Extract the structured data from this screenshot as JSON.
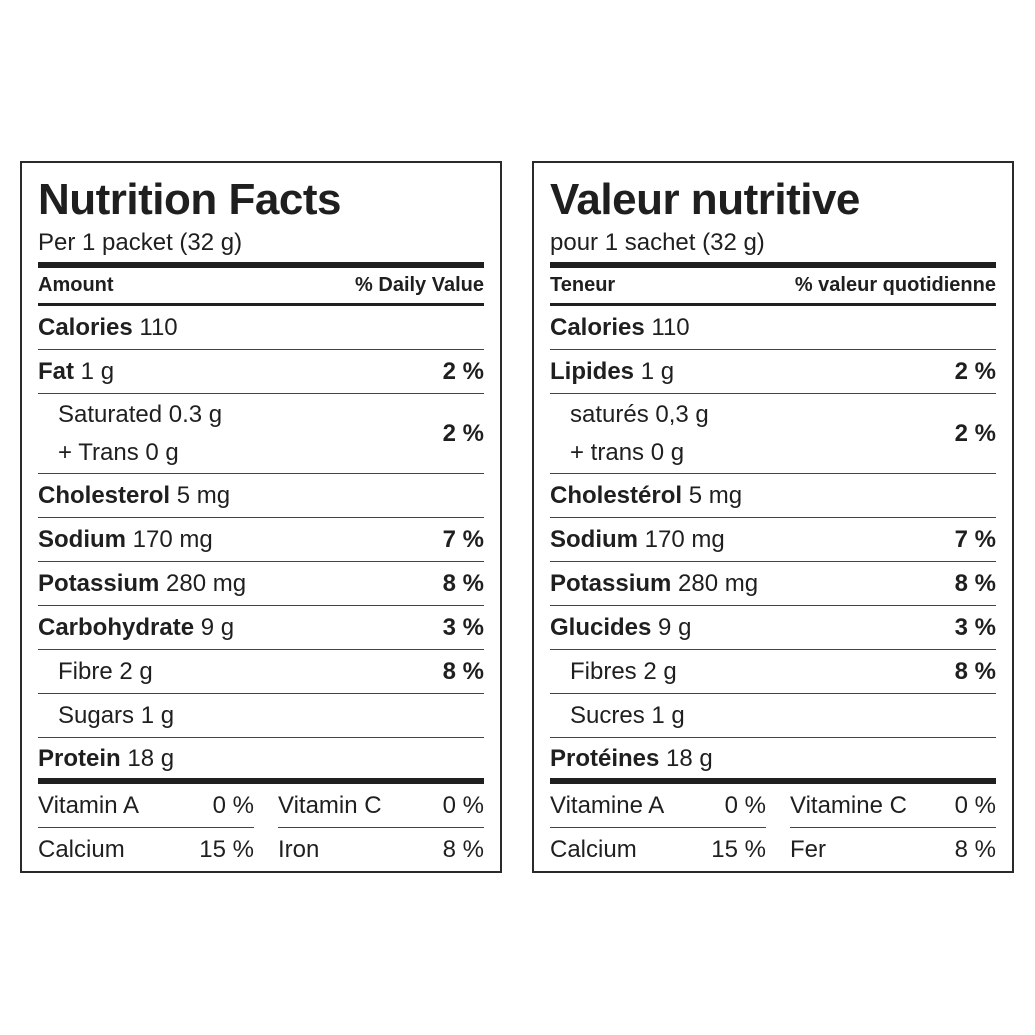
{
  "english": {
    "title": "Nutrition Facts",
    "serving": "Per 1 packet (32 g)",
    "header_left": "Amount",
    "header_right": "% Daily Value",
    "calories": {
      "name": "Calories",
      "value": "110"
    },
    "fat": {
      "name": "Fat",
      "value": "1 g",
      "dv": "2 %"
    },
    "saturated": {
      "line1": "Saturated 0.3 g",
      "line2": "+ Trans 0 g",
      "dv": "2 %"
    },
    "cholesterol": {
      "name": "Cholesterol",
      "value": "5 mg"
    },
    "sodium": {
      "name": "Sodium",
      "value": "170 mg",
      "dv": "7 %"
    },
    "potassium": {
      "name": "Potassium",
      "value": "280 mg",
      "dv": "8 %"
    },
    "carbohydrate": {
      "name": "Carbohydrate",
      "value": "9 g",
      "dv": "3 %"
    },
    "fibre": {
      "label": "Fibre 2 g",
      "dv": "8 %"
    },
    "sugars": {
      "label": "Sugars 1 g"
    },
    "protein": {
      "name": "Protein",
      "value": "18 g"
    },
    "vitamin_a": {
      "name": "Vitamin A",
      "dv": "0 %"
    },
    "vitamin_c": {
      "name": "Vitamin C",
      "dv": "0 %"
    },
    "calcium": {
      "name": "Calcium",
      "dv": "15 %"
    },
    "iron": {
      "name": "Iron",
      "dv": "8 %"
    }
  },
  "french": {
    "title": "Valeur nutritive",
    "serving": "pour 1 sachet (32 g)",
    "header_left": "Teneur",
    "header_right": "% valeur quotidienne",
    "calories": {
      "name": "Calories",
      "value": "110"
    },
    "fat": {
      "name": "Lipides",
      "value": "1 g",
      "dv": "2 %"
    },
    "saturated": {
      "line1": "saturés 0,3 g",
      "line2": "+ trans 0 g",
      "dv": "2 %"
    },
    "cholesterol": {
      "name": "Cholestérol",
      "value": "5 mg"
    },
    "sodium": {
      "name": "Sodium",
      "value": "170 mg",
      "dv": "7 %"
    },
    "potassium": {
      "name": "Potassium",
      "value": "280 mg",
      "dv": "8 %"
    },
    "carbohydrate": {
      "name": "Glucides",
      "value": "9 g",
      "dv": "3 %"
    },
    "fibre": {
      "label": "Fibres 2 g",
      "dv": "8 %"
    },
    "sugars": {
      "label": "Sucres 1 g"
    },
    "protein": {
      "name": "Protéines",
      "value": "18 g"
    },
    "vitamin_a": {
      "name": "Vitamine A",
      "dv": "0 %"
    },
    "vitamin_c": {
      "name": "Vitamine C",
      "dv": "0 %"
    },
    "calcium": {
      "name": "Calcium",
      "dv": "15 %"
    },
    "iron": {
      "name": "Fer",
      "dv": "8 %"
    }
  }
}
